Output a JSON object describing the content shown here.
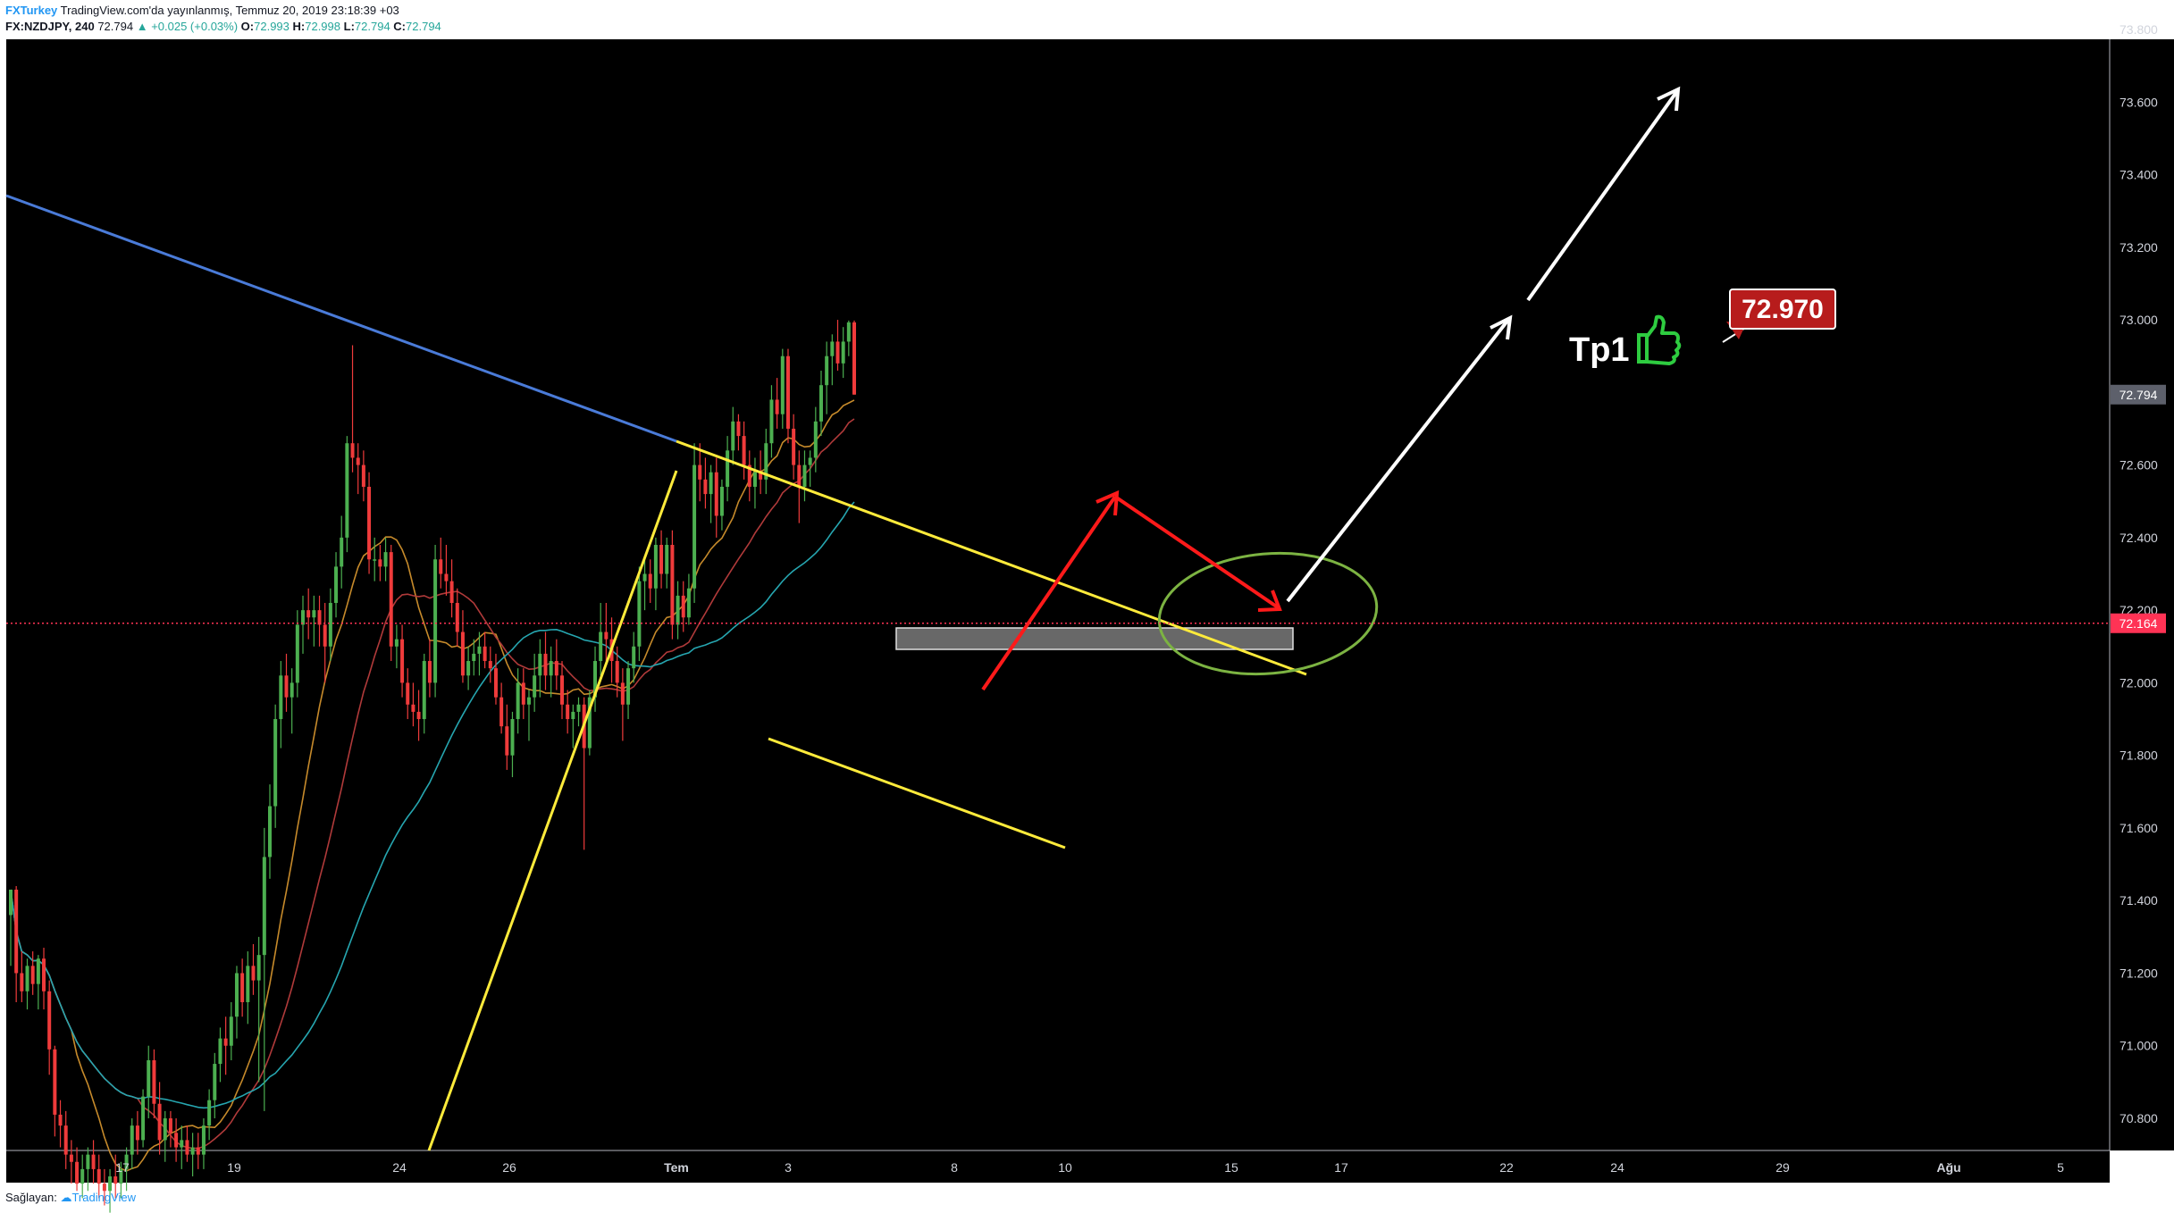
{
  "header": {
    "publisher": "FXTurkey",
    "published_text": "TradingView.com'da yayınlanmış, Temmuz 20, 2019 23:18:39 +03",
    "symbol": "FX:NZDJPY, 240",
    "last": "72.794",
    "change": "▲ +0.025 (+0.03%)",
    "o_label": "O:",
    "o_value": "72.993",
    "h_label": "H:",
    "h_value": "72.998",
    "l_label": "L:",
    "l_value": "72.794",
    "c_label": "C:",
    "c_value": "72.794"
  },
  "footer": {
    "provider_label": "Sağlayan:",
    "provider_name": "TradingView"
  },
  "chart_data": {
    "type": "candlestick",
    "symbol": "FX:NZDJPY",
    "interval": "240",
    "y_ticks": [
      "73.800",
      "73.600",
      "73.400",
      "73.200",
      "73.000",
      "72.800",
      "72.600",
      "72.400",
      "72.200",
      "72.000",
      "71.800",
      "71.600",
      "71.400",
      "71.200",
      "71.000",
      "70.800"
    ],
    "x_ticks": [
      "17",
      "19",
      "24",
      "26",
      "Tem",
      "3",
      "8",
      "10",
      "15",
      "17",
      "22",
      "24",
      "29",
      "Ağu",
      "5"
    ],
    "ylim": [
      70.7,
      73.85
    ],
    "current_price": "72.794",
    "horizontal_line_price": "72.164",
    "target_label": "72.970",
    "annotation_text": "Tp1",
    "colors": {
      "background": "#000000",
      "up": "#4caf50",
      "down": "#ef3b3b",
      "trendline": "#ffeb3b",
      "long_trend": "#4a7bd8",
      "arrow_red": "#ff1a1a",
      "arrow_white": "#ffffff",
      "ellipse": "#7cb342",
      "ma_fast": "#c68a2b",
      "ma_mid": "#b03a3a",
      "ma_slow": "#26a6b0",
      "hline": "#ff3355"
    },
    "candles": [
      {
        "o": 71.36,
        "h": 71.43,
        "l": 71.22,
        "c": 71.43
      },
      {
        "o": 71.43,
        "h": 71.44,
        "l": 71.12,
        "c": 71.2
      },
      {
        "o": 71.2,
        "h": 71.26,
        "l": 71.12,
        "c": 71.15
      },
      {
        "o": 71.15,
        "h": 71.24,
        "l": 71.1,
        "c": 71.22
      },
      {
        "o": 71.22,
        "h": 71.26,
        "l": 71.14,
        "c": 71.17
      },
      {
        "o": 71.17,
        "h": 71.25,
        "l": 71.1,
        "c": 71.24
      },
      {
        "o": 71.24,
        "h": 71.27,
        "l": 71.1,
        "c": 71.15
      },
      {
        "o": 71.15,
        "h": 71.18,
        "l": 70.92,
        "c": 70.99
      },
      {
        "o": 70.99,
        "h": 71.0,
        "l": 70.75,
        "c": 70.81
      },
      {
        "o": 70.81,
        "h": 70.85,
        "l": 70.72,
        "c": 70.78
      },
      {
        "o": 70.78,
        "h": 70.82,
        "l": 70.66,
        "c": 70.7
      },
      {
        "o": 70.7,
        "h": 70.74,
        "l": 70.62,
        "c": 70.68
      },
      {
        "o": 70.68,
        "h": 70.72,
        "l": 70.6,
        "c": 70.62
      },
      {
        "o": 70.62,
        "h": 70.7,
        "l": 70.58,
        "c": 70.66
      },
      {
        "o": 70.66,
        "h": 70.72,
        "l": 70.6,
        "c": 70.7
      },
      {
        "o": 70.7,
        "h": 70.74,
        "l": 70.62,
        "c": 70.66
      },
      {
        "o": 70.66,
        "h": 70.7,
        "l": 70.58,
        "c": 70.62
      },
      {
        "o": 70.62,
        "h": 70.66,
        "l": 70.56,
        "c": 70.6
      },
      {
        "o": 70.6,
        "h": 70.66,
        "l": 70.54,
        "c": 70.64
      },
      {
        "o": 70.64,
        "h": 70.7,
        "l": 70.58,
        "c": 70.62
      },
      {
        "o": 70.62,
        "h": 70.68,
        "l": 70.58,
        "c": 70.66
      },
      {
        "o": 70.66,
        "h": 70.72,
        "l": 70.6,
        "c": 70.7
      },
      {
        "o": 70.7,
        "h": 70.8,
        "l": 70.66,
        "c": 70.78
      },
      {
        "o": 70.78,
        "h": 70.82,
        "l": 70.7,
        "c": 70.74
      },
      {
        "o": 70.74,
        "h": 70.88,
        "l": 70.72,
        "c": 70.86
      },
      {
        "o": 70.86,
        "h": 71.0,
        "l": 70.8,
        "c": 70.96
      },
      {
        "o": 70.96,
        "h": 70.99,
        "l": 70.8,
        "c": 70.84
      },
      {
        "o": 70.84,
        "h": 70.9,
        "l": 70.7,
        "c": 70.74
      },
      {
        "o": 70.74,
        "h": 70.82,
        "l": 70.68,
        "c": 70.8
      },
      {
        "o": 70.8,
        "h": 70.82,
        "l": 70.72,
        "c": 70.76
      },
      {
        "o": 70.76,
        "h": 70.8,
        "l": 70.68,
        "c": 70.72
      },
      {
        "o": 70.72,
        "h": 70.78,
        "l": 70.66,
        "c": 70.74
      },
      {
        "o": 70.74,
        "h": 70.78,
        "l": 70.68,
        "c": 70.7
      },
      {
        "o": 70.7,
        "h": 70.76,
        "l": 70.64,
        "c": 70.72
      },
      {
        "o": 70.72,
        "h": 70.76,
        "l": 70.66,
        "c": 70.7
      },
      {
        "o": 70.7,
        "h": 70.8,
        "l": 70.66,
        "c": 70.78
      },
      {
        "o": 70.78,
        "h": 70.88,
        "l": 70.74,
        "c": 70.85
      },
      {
        "o": 70.85,
        "h": 70.98,
        "l": 70.8,
        "c": 70.95
      },
      {
        "o": 70.95,
        "h": 71.05,
        "l": 70.9,
        "c": 71.02
      },
      {
        "o": 71.02,
        "h": 71.08,
        "l": 70.92,
        "c": 71.0
      },
      {
        "o": 71.0,
        "h": 71.12,
        "l": 70.96,
        "c": 71.08
      },
      {
        "o": 71.08,
        "h": 71.22,
        "l": 71.02,
        "c": 71.2
      },
      {
        "o": 71.2,
        "h": 71.24,
        "l": 71.08,
        "c": 71.12
      },
      {
        "o": 71.12,
        "h": 71.26,
        "l": 71.06,
        "c": 71.22
      },
      {
        "o": 71.22,
        "h": 71.28,
        "l": 71.14,
        "c": 71.18
      },
      {
        "o": 71.18,
        "h": 71.3,
        "l": 70.9,
        "c": 71.25
      },
      {
        "o": 71.25,
        "h": 71.6,
        "l": 70.82,
        "c": 71.52
      },
      {
        "o": 71.52,
        "h": 71.72,
        "l": 71.46,
        "c": 71.66
      },
      {
        "o": 71.66,
        "h": 71.94,
        "l": 71.6,
        "c": 71.9
      },
      {
        "o": 71.9,
        "h": 72.06,
        "l": 71.82,
        "c": 72.02
      },
      {
        "o": 72.02,
        "h": 72.08,
        "l": 71.92,
        "c": 71.96
      },
      {
        "o": 71.96,
        "h": 72.04,
        "l": 71.86,
        "c": 72.0
      },
      {
        "o": 72.0,
        "h": 72.2,
        "l": 71.96,
        "c": 72.16
      },
      {
        "o": 72.16,
        "h": 72.24,
        "l": 72.08,
        "c": 72.2
      },
      {
        "o": 72.2,
        "h": 72.26,
        "l": 72.12,
        "c": 72.18
      },
      {
        "o": 72.18,
        "h": 72.24,
        "l": 72.1,
        "c": 72.2
      },
      {
        "o": 72.2,
        "h": 72.24,
        "l": 72.1,
        "c": 72.16
      },
      {
        "o": 72.16,
        "h": 72.22,
        "l": 72.0,
        "c": 72.1
      },
      {
        "o": 72.1,
        "h": 72.26,
        "l": 72.06,
        "c": 72.22
      },
      {
        "o": 72.22,
        "h": 72.36,
        "l": 72.18,
        "c": 72.32
      },
      {
        "o": 72.32,
        "h": 72.46,
        "l": 72.26,
        "c": 72.4
      },
      {
        "o": 72.4,
        "h": 72.68,
        "l": 72.36,
        "c": 72.66
      },
      {
        "o": 72.66,
        "h": 72.93,
        "l": 72.58,
        "c": 72.62
      },
      {
        "o": 72.62,
        "h": 72.66,
        "l": 72.52,
        "c": 72.6
      },
      {
        "o": 72.6,
        "h": 72.64,
        "l": 72.5,
        "c": 72.54
      },
      {
        "o": 72.54,
        "h": 72.58,
        "l": 72.3,
        "c": 72.34
      },
      {
        "o": 72.34,
        "h": 72.4,
        "l": 72.28,
        "c": 72.34
      },
      {
        "o": 72.34,
        "h": 72.38,
        "l": 72.28,
        "c": 72.32
      },
      {
        "o": 72.32,
        "h": 72.4,
        "l": 72.28,
        "c": 72.36
      },
      {
        "o": 72.36,
        "h": 72.38,
        "l": 72.06,
        "c": 72.1
      },
      {
        "o": 72.1,
        "h": 72.16,
        "l": 72.04,
        "c": 72.12
      },
      {
        "o": 72.12,
        "h": 72.16,
        "l": 71.96,
        "c": 72.0
      },
      {
        "o": 72.0,
        "h": 72.04,
        "l": 71.9,
        "c": 71.94
      },
      {
        "o": 71.94,
        "h": 72.0,
        "l": 71.88,
        "c": 71.92
      },
      {
        "o": 71.92,
        "h": 71.98,
        "l": 71.84,
        "c": 71.9
      },
      {
        "o": 71.9,
        "h": 72.08,
        "l": 71.86,
        "c": 72.06
      },
      {
        "o": 72.06,
        "h": 72.12,
        "l": 71.96,
        "c": 72.0
      },
      {
        "o": 72.0,
        "h": 72.38,
        "l": 71.96,
        "c": 72.34
      },
      {
        "o": 72.34,
        "h": 72.4,
        "l": 72.26,
        "c": 72.3
      },
      {
        "o": 72.3,
        "h": 72.38,
        "l": 72.24,
        "c": 72.28
      },
      {
        "o": 72.28,
        "h": 72.34,
        "l": 72.18,
        "c": 72.22
      },
      {
        "o": 72.22,
        "h": 72.26,
        "l": 72.1,
        "c": 72.14
      },
      {
        "o": 72.14,
        "h": 72.2,
        "l": 72.0,
        "c": 72.02
      },
      {
        "o": 72.02,
        "h": 72.1,
        "l": 71.98,
        "c": 72.06
      },
      {
        "o": 72.06,
        "h": 72.12,
        "l": 72.02,
        "c": 72.08
      },
      {
        "o": 72.08,
        "h": 72.14,
        "l": 72.02,
        "c": 72.1
      },
      {
        "o": 72.1,
        "h": 72.14,
        "l": 72.04,
        "c": 72.06
      },
      {
        "o": 72.06,
        "h": 72.1,
        "l": 72.0,
        "c": 72.04
      },
      {
        "o": 72.04,
        "h": 72.08,
        "l": 71.94,
        "c": 71.96
      },
      {
        "o": 71.96,
        "h": 72.0,
        "l": 71.86,
        "c": 71.88
      },
      {
        "o": 71.88,
        "h": 71.94,
        "l": 71.76,
        "c": 71.8
      },
      {
        "o": 71.8,
        "h": 71.92,
        "l": 71.74,
        "c": 71.9
      },
      {
        "o": 71.9,
        "h": 72.04,
        "l": 71.86,
        "c": 72.0
      },
      {
        "o": 72.0,
        "h": 72.04,
        "l": 71.9,
        "c": 71.94
      },
      {
        "o": 71.94,
        "h": 71.98,
        "l": 71.84,
        "c": 71.96
      },
      {
        "o": 71.96,
        "h": 72.08,
        "l": 71.92,
        "c": 72.02
      },
      {
        "o": 72.02,
        "h": 72.12,
        "l": 71.96,
        "c": 72.08
      },
      {
        "o": 72.08,
        "h": 72.14,
        "l": 71.98,
        "c": 72.02
      },
      {
        "o": 72.02,
        "h": 72.1,
        "l": 71.96,
        "c": 72.06
      },
      {
        "o": 72.06,
        "h": 72.12,
        "l": 71.98,
        "c": 72.02
      },
      {
        "o": 72.02,
        "h": 72.06,
        "l": 71.9,
        "c": 71.94
      },
      {
        "o": 71.94,
        "h": 71.98,
        "l": 71.86,
        "c": 71.9
      },
      {
        "o": 71.9,
        "h": 71.94,
        "l": 71.82,
        "c": 71.92
      },
      {
        "o": 71.92,
        "h": 71.96,
        "l": 71.88,
        "c": 71.94
      },
      {
        "o": 71.94,
        "h": 71.96,
        "l": 71.54,
        "c": 71.82
      },
      {
        "o": 71.82,
        "h": 71.98,
        "l": 71.8,
        "c": 71.96
      },
      {
        "o": 71.96,
        "h": 72.1,
        "l": 71.92,
        "c": 72.06
      },
      {
        "o": 72.06,
        "h": 72.22,
        "l": 72.02,
        "c": 72.14
      },
      {
        "o": 72.14,
        "h": 72.22,
        "l": 72.06,
        "c": 72.12
      },
      {
        "o": 72.12,
        "h": 72.18,
        "l": 72.0,
        "c": 72.06
      },
      {
        "o": 72.06,
        "h": 72.1,
        "l": 71.96,
        "c": 72.0
      },
      {
        "o": 72.0,
        "h": 72.04,
        "l": 71.84,
        "c": 71.94
      },
      {
        "o": 71.94,
        "h": 72.06,
        "l": 71.9,
        "c": 72.04
      },
      {
        "o": 72.04,
        "h": 72.14,
        "l": 72.0,
        "c": 72.1
      },
      {
        "o": 72.1,
        "h": 72.32,
        "l": 72.06,
        "c": 72.28
      },
      {
        "o": 72.28,
        "h": 72.34,
        "l": 72.2,
        "c": 72.3
      },
      {
        "o": 72.3,
        "h": 72.34,
        "l": 72.22,
        "c": 72.26
      },
      {
        "o": 72.26,
        "h": 72.4,
        "l": 72.2,
        "c": 72.38
      },
      {
        "o": 72.38,
        "h": 72.42,
        "l": 72.26,
        "c": 72.3
      },
      {
        "o": 72.3,
        "h": 72.4,
        "l": 72.26,
        "c": 72.38
      },
      {
        "o": 72.38,
        "h": 72.42,
        "l": 72.12,
        "c": 72.16
      },
      {
        "o": 72.16,
        "h": 72.28,
        "l": 72.12,
        "c": 72.24
      },
      {
        "o": 72.24,
        "h": 72.28,
        "l": 72.14,
        "c": 72.18
      },
      {
        "o": 72.18,
        "h": 72.3,
        "l": 72.16,
        "c": 72.26
      },
      {
        "o": 72.26,
        "h": 72.66,
        "l": 72.22,
        "c": 72.6
      },
      {
        "o": 72.6,
        "h": 72.66,
        "l": 72.5,
        "c": 72.56
      },
      {
        "o": 72.56,
        "h": 72.62,
        "l": 72.48,
        "c": 72.52
      },
      {
        "o": 72.52,
        "h": 72.6,
        "l": 72.44,
        "c": 72.58
      },
      {
        "o": 72.58,
        "h": 72.62,
        "l": 72.4,
        "c": 72.46
      },
      {
        "o": 72.46,
        "h": 72.56,
        "l": 72.42,
        "c": 72.54
      },
      {
        "o": 72.54,
        "h": 72.68,
        "l": 72.5,
        "c": 72.64
      },
      {
        "o": 72.64,
        "h": 72.76,
        "l": 72.6,
        "c": 72.72
      },
      {
        "o": 72.72,
        "h": 72.74,
        "l": 72.64,
        "c": 72.68
      },
      {
        "o": 72.68,
        "h": 72.72,
        "l": 72.56,
        "c": 72.6
      },
      {
        "o": 72.6,
        "h": 72.64,
        "l": 72.5,
        "c": 72.54
      },
      {
        "o": 72.54,
        "h": 72.62,
        "l": 72.48,
        "c": 72.58
      },
      {
        "o": 72.58,
        "h": 72.64,
        "l": 72.52,
        "c": 72.56
      },
      {
        "o": 72.56,
        "h": 72.7,
        "l": 72.52,
        "c": 72.66
      },
      {
        "o": 72.66,
        "h": 72.82,
        "l": 72.62,
        "c": 72.78
      },
      {
        "o": 72.78,
        "h": 72.84,
        "l": 72.7,
        "c": 72.74
      },
      {
        "o": 72.74,
        "h": 72.92,
        "l": 72.7,
        "c": 72.9
      },
      {
        "o": 72.9,
        "h": 72.92,
        "l": 72.66,
        "c": 72.7
      },
      {
        "o": 72.7,
        "h": 72.74,
        "l": 72.56,
        "c": 72.6
      },
      {
        "o": 72.6,
        "h": 72.64,
        "l": 72.44,
        "c": 72.54
      },
      {
        "o": 72.54,
        "h": 72.64,
        "l": 72.5,
        "c": 72.6
      },
      {
        "o": 72.6,
        "h": 72.64,
        "l": 72.54,
        "c": 72.62
      },
      {
        "o": 72.62,
        "h": 72.76,
        "l": 72.58,
        "c": 72.72
      },
      {
        "o": 72.72,
        "h": 72.86,
        "l": 72.68,
        "c": 72.82
      },
      {
        "o": 72.82,
        "h": 72.94,
        "l": 72.74,
        "c": 72.9
      },
      {
        "o": 72.9,
        "h": 72.96,
        "l": 72.82,
        "c": 72.94
      },
      {
        "o": 72.94,
        "h": 73.0,
        "l": 72.86,
        "c": 72.88
      },
      {
        "o": 72.88,
        "h": 72.98,
        "l": 72.84,
        "c": 72.94
      },
      {
        "o": 72.94,
        "h": 72.998,
        "l": 72.9,
        "c": 72.993
      },
      {
        "o": 72.993,
        "h": 72.998,
        "l": 72.794,
        "c": 72.794
      }
    ]
  }
}
